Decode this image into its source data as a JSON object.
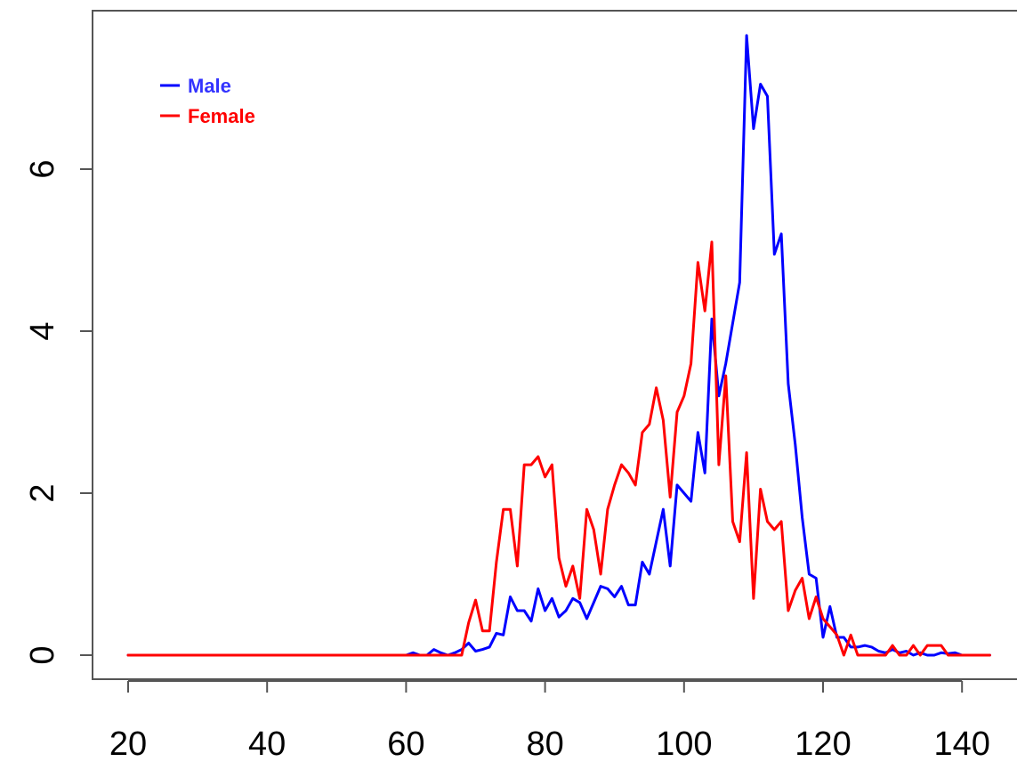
{
  "chart_data": {
    "type": "line",
    "title": "",
    "xlabel": "",
    "ylabel": "",
    "xlim": [
      20,
      144
    ],
    "ylim": [
      0,
      7.7
    ],
    "xticks": [
      20,
      40,
      60,
      80,
      100,
      120,
      140
    ],
    "yticks": [
      0,
      2,
      4,
      6
    ],
    "grid": false,
    "legend_position": "top-left",
    "series": [
      {
        "name": "Male",
        "color": "#0000ff",
        "x": [
          20,
          21,
          22,
          23,
          24,
          25,
          26,
          27,
          28,
          29,
          30,
          31,
          32,
          33,
          34,
          35,
          36,
          37,
          38,
          39,
          40,
          41,
          42,
          43,
          44,
          45,
          46,
          47,
          48,
          49,
          50,
          51,
          52,
          53,
          54,
          55,
          56,
          57,
          58,
          59,
          60,
          61,
          62,
          63,
          64,
          65,
          66,
          67,
          68,
          69,
          70,
          71,
          72,
          73,
          74,
          75,
          76,
          77,
          78,
          79,
          80,
          81,
          82,
          83,
          84,
          85,
          86,
          87,
          88,
          89,
          90,
          91,
          92,
          93,
          94,
          95,
          96,
          97,
          98,
          99,
          100,
          101,
          102,
          103,
          104,
          105,
          106,
          107,
          108,
          109,
          110,
          111,
          112,
          113,
          114,
          115,
          116,
          117,
          118,
          119,
          120,
          121,
          122,
          123,
          124,
          125,
          126,
          127,
          128,
          129,
          130,
          131,
          132,
          133,
          134,
          135,
          136,
          137,
          138,
          139,
          140,
          141,
          142,
          143,
          144
        ],
        "y": [
          0,
          0,
          0,
          0,
          0,
          0,
          0,
          0,
          0,
          0,
          0,
          0,
          0,
          0,
          0,
          0,
          0,
          0,
          0,
          0,
          0,
          0,
          0,
          0,
          0,
          0,
          0,
          0,
          0,
          0,
          0,
          0,
          0,
          0,
          0,
          0,
          0,
          0,
          0,
          0,
          0,
          0.03,
          0,
          0,
          0.07,
          0.03,
          0,
          0.03,
          0.07,
          0.15,
          0.05,
          0.07,
          0.1,
          0.27,
          0.25,
          0.72,
          0.55,
          0.55,
          0.42,
          0.82,
          0.55,
          0.7,
          0.47,
          0.55,
          0.7,
          0.65,
          0.45,
          0.65,
          0.85,
          0.82,
          0.72,
          0.85,
          0.62,
          0.62,
          1.15,
          1.0,
          1.4,
          1.8,
          1.1,
          2.1,
          2.0,
          1.9,
          2.75,
          2.25,
          4.15,
          3.2,
          3.6,
          4.1,
          4.6,
          7.65,
          6.5,
          7.05,
          6.9,
          4.95,
          5.2,
          3.35,
          2.6,
          1.7,
          1.0,
          0.95,
          0.22,
          0.6,
          0.22,
          0.22,
          0.1,
          0.1,
          0.12,
          0.1,
          0.05,
          0.03,
          0.07,
          0.03,
          0.05,
          0,
          0.03,
          0,
          0,
          0.03,
          0.02,
          0.03,
          0,
          0,
          0,
          0,
          0
        ]
      },
      {
        "name": "Female",
        "color": "#ff0000",
        "x": [
          20,
          21,
          22,
          23,
          24,
          25,
          26,
          27,
          28,
          29,
          30,
          31,
          32,
          33,
          34,
          35,
          36,
          37,
          38,
          39,
          40,
          41,
          42,
          43,
          44,
          45,
          46,
          47,
          48,
          49,
          50,
          51,
          52,
          53,
          54,
          55,
          56,
          57,
          58,
          59,
          60,
          61,
          62,
          63,
          64,
          65,
          66,
          67,
          68,
          69,
          70,
          71,
          72,
          73,
          74,
          75,
          76,
          77,
          78,
          79,
          80,
          81,
          82,
          83,
          84,
          85,
          86,
          87,
          88,
          89,
          90,
          91,
          92,
          93,
          94,
          95,
          96,
          97,
          98,
          99,
          100,
          101,
          102,
          103,
          104,
          105,
          106,
          107,
          108,
          109,
          110,
          111,
          112,
          113,
          114,
          115,
          116,
          117,
          118,
          119,
          120,
          121,
          122,
          123,
          124,
          125,
          126,
          127,
          128,
          129,
          130,
          131,
          132,
          133,
          134,
          135,
          136,
          137,
          138,
          139,
          140,
          141,
          142,
          143,
          144
        ],
        "y": [
          0,
          0,
          0,
          0,
          0,
          0,
          0,
          0,
          0,
          0,
          0,
          0,
          0,
          0,
          0,
          0,
          0,
          0,
          0,
          0,
          0,
          0,
          0,
          0,
          0,
          0,
          0,
          0,
          0,
          0,
          0,
          0,
          0,
          0,
          0,
          0,
          0,
          0,
          0,
          0,
          0,
          0,
          0,
          0,
          0,
          0,
          0,
          0,
          0,
          0.4,
          0.68,
          0.3,
          0.3,
          1.15,
          1.8,
          1.8,
          1.1,
          2.35,
          2.35,
          2.45,
          2.2,
          2.35,
          1.2,
          0.85,
          1.1,
          0.7,
          1.8,
          1.55,
          1.0,
          1.8,
          2.1,
          2.35,
          2.25,
          2.1,
          2.75,
          2.85,
          3.3,
          2.9,
          1.95,
          3.0,
          3.2,
          3.6,
          4.85,
          4.25,
          5.1,
          2.35,
          3.45,
          1.65,
          1.4,
          2.5,
          0.7,
          2.05,
          1.65,
          1.55,
          1.65,
          0.55,
          0.8,
          0.95,
          0.45,
          0.72,
          0.45,
          0.35,
          0.25,
          0,
          0.25,
          0,
          0,
          0,
          0,
          0,
          0.12,
          0,
          0,
          0.12,
          0,
          0.12,
          0.12,
          0.12,
          0,
          0,
          0,
          0,
          0,
          0,
          0
        ]
      }
    ]
  }
}
